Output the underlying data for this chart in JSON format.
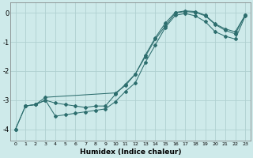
{
  "xlabel": "Humidex (Indice chaleur)",
  "ylabel": "",
  "bg_color": "#ceeaea",
  "grid_color": "#b0d0d0",
  "line_color": "#2d6e6e",
  "xlim": [
    -0.5,
    23.5
  ],
  "ylim": [
    -4.4,
    0.35
  ],
  "yticks": [
    0,
    -1,
    -2,
    -3,
    -4
  ],
  "xticks": [
    0,
    1,
    2,
    3,
    4,
    5,
    6,
    7,
    8,
    9,
    10,
    11,
    12,
    13,
    14,
    15,
    16,
    17,
    18,
    19,
    20,
    21,
    22,
    23
  ],
  "line1_x": [
    0,
    1,
    2,
    3,
    4,
    5,
    6,
    7,
    8,
    9,
    10,
    11,
    12,
    13,
    14,
    15,
    16,
    17,
    18,
    19,
    20,
    21,
    22,
    23
  ],
  "line1_y": [
    -4.0,
    -3.2,
    -3.15,
    -3.0,
    -3.1,
    -3.15,
    -3.2,
    -3.25,
    -3.2,
    -3.2,
    -2.8,
    -2.45,
    -2.1,
    -1.45,
    -0.85,
    -0.35,
    0.02,
    0.07,
    0.05,
    -0.08,
    -0.38,
    -0.55,
    -0.65,
    -0.07
  ],
  "line2_x": [
    0,
    1,
    2,
    3,
    4,
    5,
    6,
    7,
    8,
    9,
    10,
    11,
    12,
    13,
    14,
    15,
    16,
    17,
    18,
    19,
    20,
    21,
    22,
    23
  ],
  "line2_y": [
    -4.0,
    -3.2,
    -3.15,
    -3.0,
    -3.55,
    -3.5,
    -3.45,
    -3.4,
    -3.35,
    -3.3,
    -3.05,
    -2.7,
    -2.4,
    -1.7,
    -1.1,
    -0.5,
    -0.08,
    -0.02,
    -0.1,
    -0.3,
    -0.65,
    -0.8,
    -0.9,
    -0.1
  ],
  "line3_x": [
    1,
    2,
    3,
    10,
    11,
    12,
    13,
    14,
    15,
    16,
    17,
    18,
    19,
    20,
    21,
    22,
    23
  ],
  "line3_y": [
    -3.2,
    -3.15,
    -2.9,
    -2.75,
    -2.5,
    -2.1,
    -1.5,
    -0.9,
    -0.45,
    0.0,
    0.05,
    0.02,
    -0.1,
    -0.4,
    -0.6,
    -0.72,
    -0.07
  ]
}
